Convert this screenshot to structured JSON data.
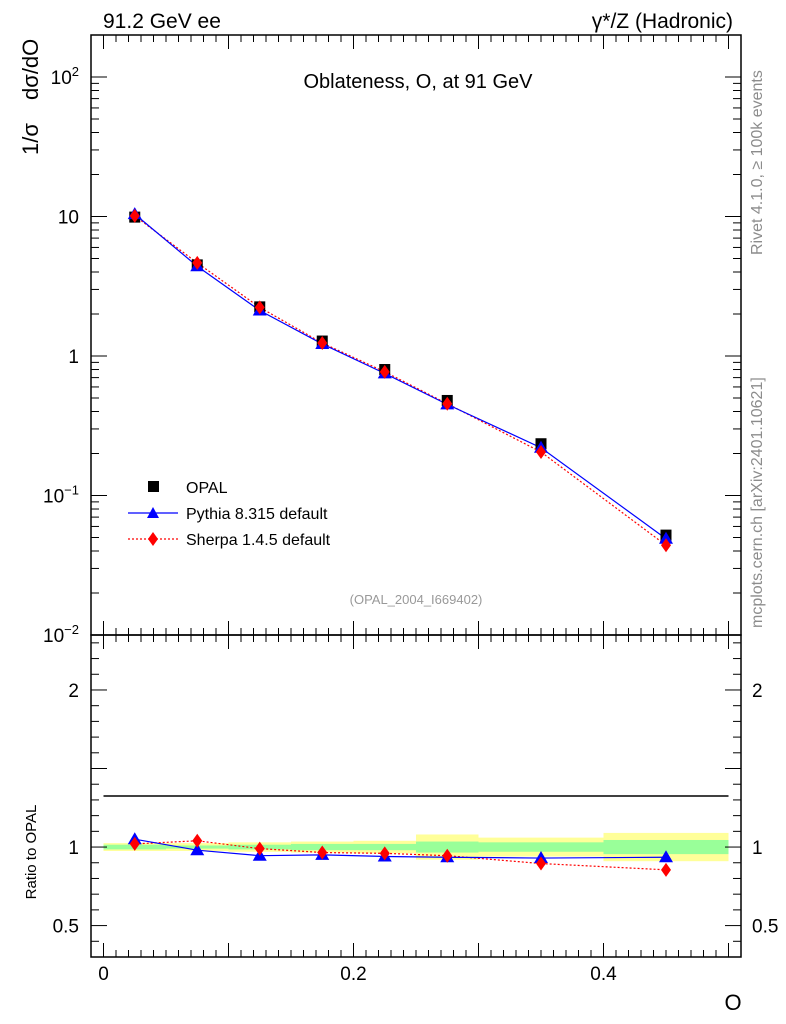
{
  "header": {
    "left": "91.2 GeV ee",
    "right": "γ*/Z (Hadronic)"
  },
  "side_text": {
    "rivet": "Rivet 4.1.0, ≥ 100k events",
    "mcplots": "mcplots.cern.ch [arXiv:2401.10621]"
  },
  "colors": {
    "data": "#000000",
    "pythia": "#0000ff",
    "sherpa": "#ff0000",
    "band_yellow": "#ffff99",
    "band_green": "#99ff99"
  },
  "chart_data": [
    {
      "type": "line",
      "title": "Oblateness, O, at 91 GeV",
      "analysis_tag": "(OPAL_2004_I669402)",
      "ylabel_top": "1/σ",
      "ylabel_bottom": "dσ/dO",
      "yscale": "log",
      "ylim": [
        0.01,
        200
      ],
      "xlim": [
        -0.01,
        0.51
      ],
      "yticks": [
        {
          "value": 100,
          "label": "10",
          "sup": "2"
        },
        {
          "value": 10,
          "label": "10",
          "sup": ""
        },
        {
          "value": 1,
          "label": "1",
          "sup": ""
        },
        {
          "value": 0.1,
          "label": "10",
          "sup": "−1"
        },
        {
          "value": 0.01,
          "label": "10",
          "sup": "−2"
        }
      ],
      "x": [
        0.025,
        0.075,
        0.125,
        0.175,
        0.225,
        0.275,
        0.35,
        0.45
      ],
      "series": [
        {
          "name": "OPAL",
          "marker": "square",
          "values": [
            9.9,
            4.5,
            2.25,
            1.28,
            0.8,
            0.48,
            0.235,
            0.052
          ]
        },
        {
          "name": "Pythia 8.315 default",
          "marker": "triangle",
          "values": [
            10.4,
            4.4,
            2.12,
            1.22,
            0.75,
            0.45,
            0.22,
            0.049
          ]
        },
        {
          "name": "Sherpa 1.4.5 default",
          "marker": "diamond",
          "values": [
            10.1,
            4.65,
            2.23,
            1.24,
            0.77,
            0.455,
            0.205,
            0.044
          ]
        }
      ],
      "legend": [
        "OPAL",
        "Pythia 8.315 default",
        "Sherpa 1.4.5 default"
      ],
      "legend_position": "bottom-left"
    },
    {
      "type": "line",
      "ylabel": "Ratio to OPAL",
      "xlabel": "O",
      "ylim": [
        0.3,
        2.35
      ],
      "xlim": [
        -0.01,
        0.51
      ],
      "yticks": [
        {
          "value": 0.5,
          "label": "0.5"
        },
        {
          "value": 1,
          "label": "1"
        },
        {
          "value": 2,
          "label": "2"
        }
      ],
      "xticks": [
        {
          "value": 0,
          "label": "0"
        },
        {
          "value": 0.2,
          "label": "0.2"
        },
        {
          "value": 0.4,
          "label": "0.4"
        }
      ],
      "bins": [
        [
          0.0,
          0.05
        ],
        [
          0.05,
          0.1
        ],
        [
          0.1,
          0.15
        ],
        [
          0.15,
          0.2
        ],
        [
          0.2,
          0.25
        ],
        [
          0.25,
          0.3
        ],
        [
          0.3,
          0.4
        ],
        [
          0.4,
          0.5
        ]
      ],
      "band_yellow": [
        [
          0.975,
          1.025
        ],
        [
          0.975,
          1.025
        ],
        [
          0.97,
          1.03
        ],
        [
          0.965,
          1.035
        ],
        [
          0.96,
          1.04
        ],
        [
          0.92,
          1.08
        ],
        [
          0.94,
          1.06
        ],
        [
          0.91,
          1.09
        ]
      ],
      "band_green": [
        [
          0.985,
          1.015
        ],
        [
          0.99,
          1.01
        ],
        [
          0.985,
          1.015
        ],
        [
          0.98,
          1.02
        ],
        [
          0.98,
          1.02
        ],
        [
          0.965,
          1.035
        ],
        [
          0.97,
          1.03
        ],
        [
          0.955,
          1.045
        ]
      ],
      "x": [
        0.025,
        0.075,
        0.125,
        0.175,
        0.225,
        0.275,
        0.35,
        0.45
      ],
      "series": [
        {
          "name": "Pythia 8.315 default",
          "values": [
            1.05,
            0.98,
            0.945,
            0.95,
            0.94,
            0.935,
            0.93,
            0.935
          ]
        },
        {
          "name": "Sherpa 1.4.5 default",
          "values": [
            1.02,
            1.04,
            0.99,
            0.965,
            0.96,
            0.945,
            0.895,
            0.855
          ]
        }
      ]
    }
  ]
}
